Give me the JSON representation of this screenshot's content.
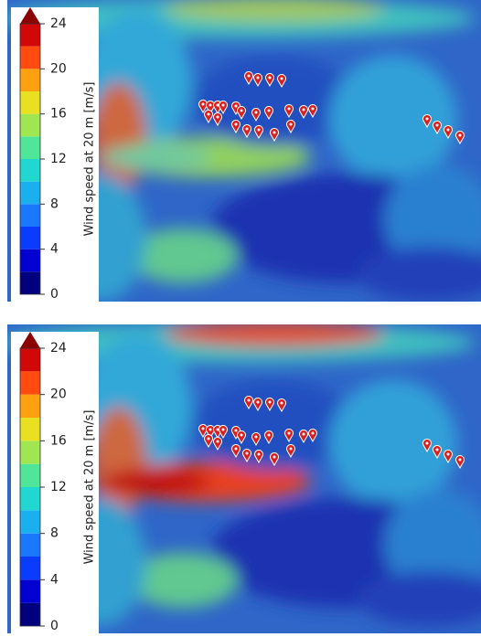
{
  "panels": [
    {
      "colorbar": {
        "label": "Wind speed at 20 m [m/s]",
        "lim": [
          0,
          24
        ],
        "ticks": [
          0,
          4,
          8,
          12,
          16,
          20,
          24
        ],
        "colors": [
          "#00007f",
          "#0000d0",
          "#0a3cff",
          "#1a78ff",
          "#1ab0f0",
          "#20d8d0",
          "#50e69a",
          "#a0e650",
          "#e8e020",
          "#ffa010",
          "#ff4a10",
          "#d00808"
        ],
        "over_color": "#8b0000"
      }
    },
    {
      "colorbar": {
        "label": "Wind speed at 20 m [m/s]",
        "lim": [
          0,
          24
        ],
        "ticks": [
          0,
          4,
          8,
          12,
          16,
          20,
          24
        ],
        "colors": [
          "#00007f",
          "#0000d0",
          "#0a3cff",
          "#1a78ff",
          "#1ab0f0",
          "#20d8d0",
          "#50e69a",
          "#a0e650",
          "#e8e020",
          "#ffa010",
          "#ff4a10",
          "#d00808"
        ],
        "over_color": "#8b0000"
      }
    }
  ]
}
